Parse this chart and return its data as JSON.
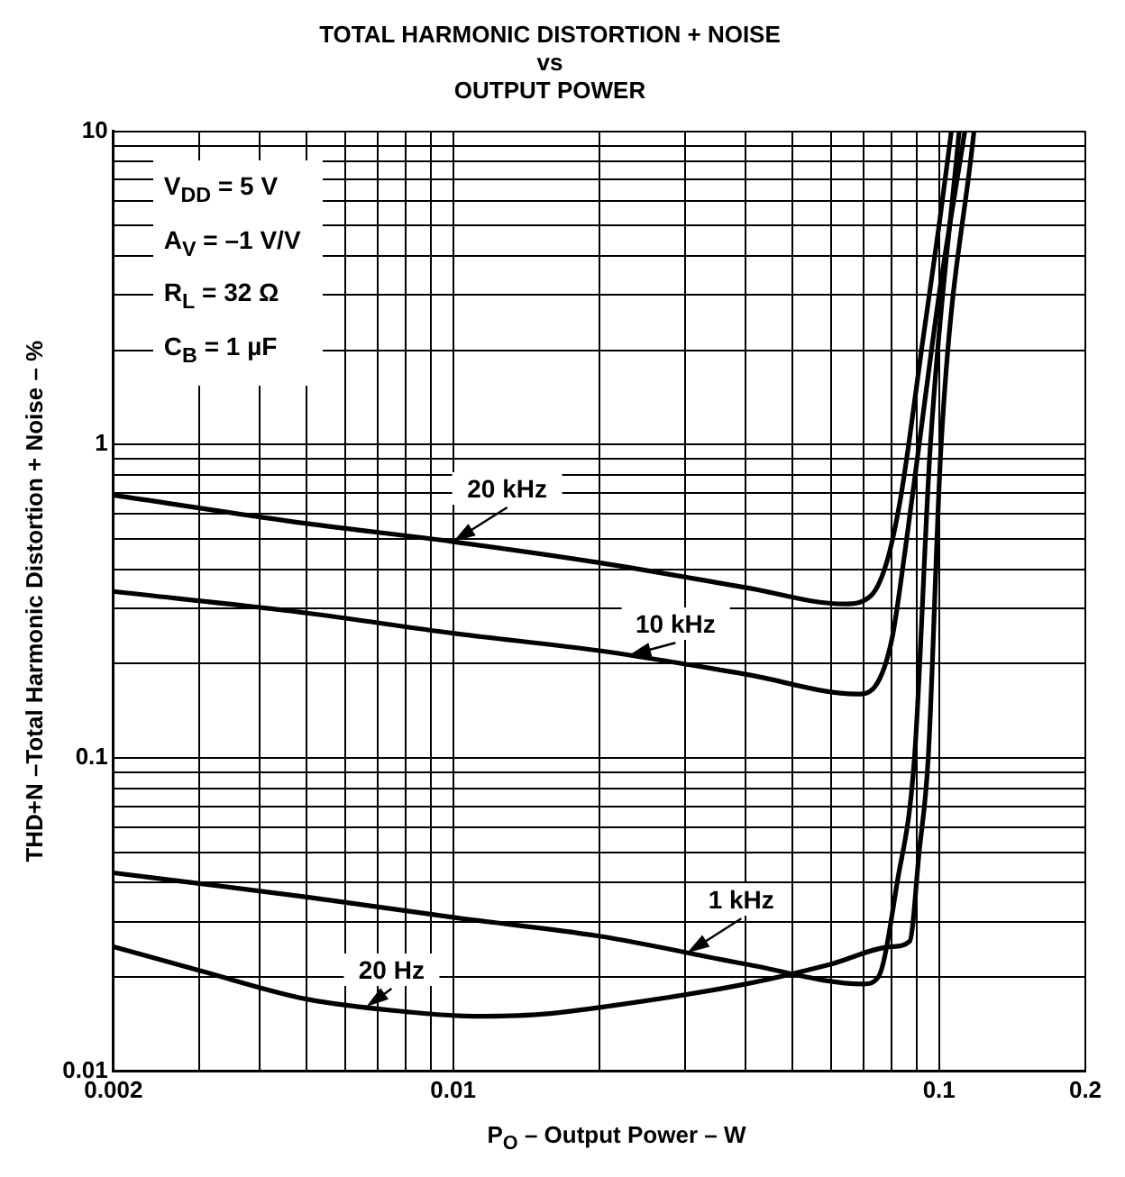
{
  "chart_data": {
    "type": "line",
    "title": "TOTAL HARMONIC DISTORTION + NOISE\nvs\nOUTPUT POWER",
    "xlabel": "P$_{O}$ – Output Power – W",
    "ylabel": "THD+N –Total Harmonic Distortion + Noise – %",
    "log": "xy",
    "grid": true,
    "legend": false,
    "marker": "none",
    "line_style": "solid",
    "xlim": [
      0.002,
      0.2
    ],
    "ylim": [
      0.01,
      10
    ],
    "xticks": [
      0.002,
      {
        "value": 0.003,
        "label": null
      },
      {
        "value": 0.004,
        "label": null
      },
      {
        "value": 0.005,
        "label": null
      },
      {
        "value": 0.006,
        "label": null
      },
      {
        "value": 0.007,
        "label": null
      },
      {
        "value": 0.008,
        "label": null
      },
      {
        "value": 0.009,
        "label": null
      },
      0.01,
      {
        "value": 0.02,
        "label": null
      },
      {
        "value": 0.03,
        "label": null
      },
      {
        "value": 0.04,
        "label": null
      },
      {
        "value": 0.05,
        "label": null
      },
      {
        "value": 0.06,
        "label": null
      },
      {
        "value": 0.07,
        "label": null
      },
      {
        "value": 0.08,
        "label": null
      },
      {
        "value": 0.09,
        "label": null
      },
      0.1,
      0.2
    ],
    "yticks": [
      0.01,
      {
        "value": 0.02,
        "label": null
      },
      {
        "value": 0.03,
        "label": null
      },
      {
        "value": 0.04,
        "label": null
      },
      {
        "value": 0.05,
        "label": null
      },
      {
        "value": 0.06,
        "label": null
      },
      {
        "value": 0.07,
        "label": null
      },
      {
        "value": 0.08,
        "label": null
      },
      {
        "value": 0.09,
        "label": null
      },
      0.1,
      {
        "value": 0.2,
        "label": null
      },
      {
        "value": 0.3,
        "label": null
      },
      {
        "value": 0.4,
        "label": null
      },
      {
        "value": 0.5,
        "label": null
      },
      {
        "value": 0.6,
        "label": null
      },
      {
        "value": 0.7,
        "label": null
      },
      {
        "value": 0.8,
        "label": null
      },
      {
        "value": 0.9,
        "label": null
      },
      1,
      {
        "value": 2,
        "label": null
      },
      {
        "value": 3,
        "label": null
      },
      {
        "value": 4,
        "label": null
      },
      {
        "value": 5,
        "label": null
      },
      {
        "value": 6,
        "label": null
      },
      {
        "value": 7,
        "label": null
      },
      {
        "value": 8,
        "label": null
      },
      {
        "value": 9,
        "label": null
      },
      10
    ],
    "series": [
      {
        "name": "20 kHz",
        "color": "#000000",
        "x": [
          0.002,
          0.005,
          0.01,
          0.02,
          0.04,
          0.0637,
          0.0725,
          0.078,
          0.083,
          0.0866,
          0.092,
          0.1,
          0.106
        ],
        "values": [
          0.69,
          0.56,
          0.49,
          0.42,
          0.35,
          0.31,
          0.33,
          0.42,
          0.65,
          1,
          2,
          5,
          10
        ]
      },
      {
        "name": "10 kHz",
        "color": "#000000",
        "x": [
          0.002,
          0.005,
          0.01,
          0.02,
          0.04,
          0.068,
          0.074,
          0.08,
          0.085,
          0.091,
          0.1,
          0.113
        ],
        "values": [
          0.34,
          0.29,
          0.25,
          0.22,
          0.185,
          0.16,
          0.17,
          0.24,
          0.45,
          1,
          3,
          10
        ]
      },
      {
        "name": "1 kHz",
        "color": "#000000",
        "x": [
          0.002,
          0.005,
          0.01,
          0.02,
          0.04,
          0.07,
          0.075,
          0.082,
          0.089,
          0.096,
          0.11
        ],
        "values": [
          0.043,
          0.036,
          0.031,
          0.027,
          0.022,
          0.019,
          0.02,
          0.04,
          0.1,
          1,
          10
        ]
      },
      {
        "name": "20 Hz",
        "color": "#000000",
        "x": [
          0.002,
          0.003,
          0.005,
          0.008,
          0.011,
          0.015,
          0.02,
          0.04,
          0.06,
          0.08,
          0.087,
          0.091,
          0.095,
          0.101,
          0.118
        ],
        "values": [
          0.025,
          0.021,
          0.017,
          0.0155,
          0.015,
          0.0152,
          0.016,
          0.019,
          0.022,
          0.025,
          0.026,
          0.05,
          0.1,
          1,
          10
        ]
      }
    ],
    "annotations": [
      "V$_{DD}$ = 5 V",
      "A$_{V}$ = –1 V/V",
      "R$_{L}$ = 32 Ω",
      "C$_{B}$ = 1 µF"
    ]
  }
}
